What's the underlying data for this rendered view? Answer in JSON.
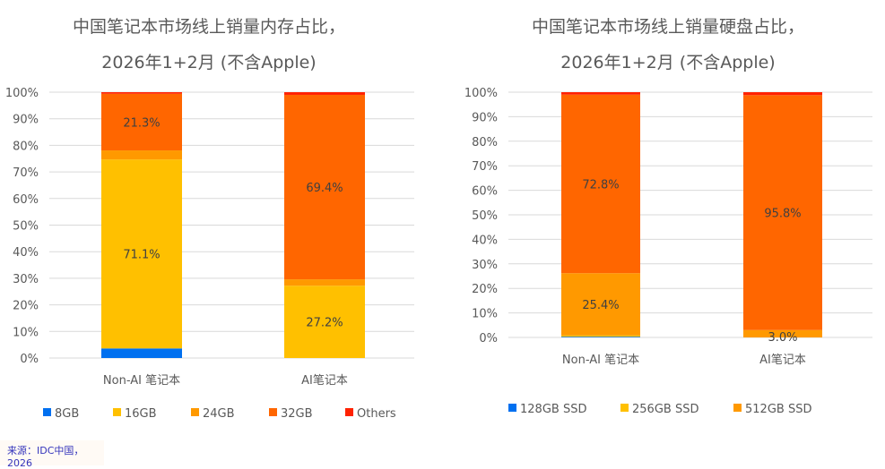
{
  "chart_data": [
    {
      "type": "bar",
      "stacked": true,
      "title": [
        "中国笔记本市场线上销量内存占比，",
        "2026年1+2月 (不含Apple)"
      ],
      "categories": [
        "Non-AI 笔记本",
        "AI笔记本"
      ],
      "ylim": [
        0,
        100
      ],
      "yticks": [
        "0%",
        "10%",
        "20%",
        "30%",
        "40%",
        "50%",
        "60%",
        "70%",
        "80%",
        "90%",
        "100%"
      ],
      "grid": true,
      "legend_position": "bottom",
      "series": [
        {
          "name": "8GB",
          "color": "#0070F0",
          "values": [
            3.6,
            0
          ],
          "labels": [
            "",
            ""
          ]
        },
        {
          "name": "16GB",
          "color": "#FFC000",
          "values": [
            71.1,
            27.2
          ],
          "labels": [
            "71.1%",
            "27.2%"
          ]
        },
        {
          "name": "24GB",
          "color": "#FF9900",
          "values": [
            3.4,
            2.4
          ],
          "labels": [
            "",
            ""
          ]
        },
        {
          "name": "32GB",
          "color": "#FF6600",
          "values": [
            21.3,
            69.4
          ],
          "labels": [
            "21.3%",
            "69.4%"
          ]
        },
        {
          "name": "Others",
          "color": "#FF2200",
          "values": [
            0.6,
            1.0
          ],
          "labels": [
            "",
            ""
          ]
        }
      ]
    },
    {
      "type": "bar",
      "stacked": true,
      "title": [
        "中国笔记本市场线上销量硬盘占比，",
        "2026年1+2月 (不含Apple)"
      ],
      "categories": [
        "Non-AI 笔记本",
        "AI笔记本"
      ],
      "ylim": [
        0,
        100
      ],
      "yticks": [
        "0%",
        "10%",
        "20%",
        "30%",
        "40%",
        "50%",
        "60%",
        "70%",
        "80%",
        "90%",
        "100%"
      ],
      "grid": true,
      "legend_position": "bottom",
      "series": [
        {
          "name": "128GB SSD",
          "color": "#0070F0",
          "values": [
            0.3,
            0
          ],
          "labels": [
            "",
            ""
          ]
        },
        {
          "name": "256GB SSD",
          "color": "#FFC000",
          "values": [
            0.5,
            0
          ],
          "labels": [
            "",
            ""
          ]
        },
        {
          "name": "512GB SSD",
          "color": "#FF9900",
          "values": [
            25.4,
            3.0
          ],
          "labels": [
            "25.4%",
            "3.0%"
          ]
        },
        {
          "color": "#FF6600",
          "values": [
            72.8,
            95.8
          ],
          "labels": [
            "72.8%",
            "95.8%"
          ]
        },
        {
          "color": "#FF2200",
          "values": [
            1.0,
            1.2
          ],
          "labels": [
            "",
            ""
          ]
        }
      ]
    }
  ],
  "source": "来源：IDC中国，2026"
}
